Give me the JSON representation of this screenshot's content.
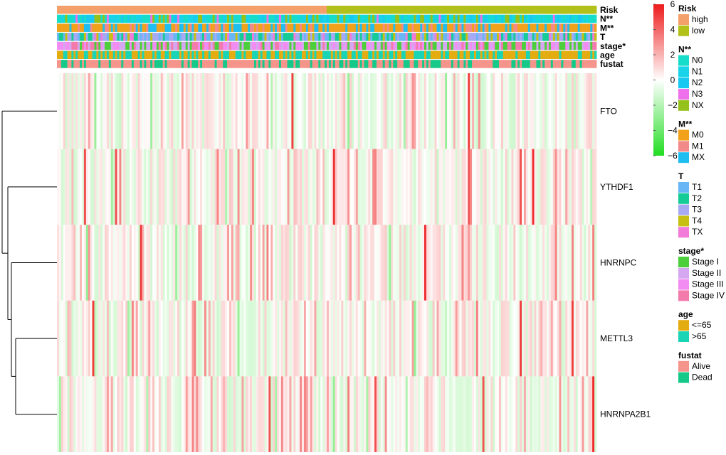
{
  "chart_data": {
    "type": "heatmap",
    "title": "",
    "color_scale": {
      "min": -6,
      "max": 6,
      "ticks": [
        6,
        4,
        2,
        0,
        -2,
        -4,
        -6
      ],
      "tick_labels": [
        "6",
        "4",
        "2",
        "0",
        "−2",
        "−4",
        "−6"
      ],
      "colors": {
        "high": "#ee1c1c",
        "mid": "#ffffff",
        "low": "#22dd22"
      }
    },
    "samples": {
      "count": 260,
      "risk_high_count": 130
    },
    "genes": [
      "FTO",
      "YTHDF1",
      "HNRNPC",
      "METTL3",
      "HNRNPA2B1"
    ],
    "dendrogram": "rows clustered: FTO joins last; YTHDF1 joins cluster (HNRNPC,(METTL3,HNRNPA2B1))",
    "annotation_tracks": [
      {
        "label": "Risk"
      },
      {
        "label": "N**"
      },
      {
        "label": "M**"
      },
      {
        "label": "T"
      },
      {
        "label": "stage*"
      },
      {
        "label": "age"
      },
      {
        "label": "fustat"
      }
    ]
  },
  "legend": {
    "groups": [
      {
        "title": "Risk",
        "items": [
          {
            "label": "high",
            "color": "#f4a06a"
          },
          {
            "label": "low",
            "color": "#b2c11a"
          }
        ]
      },
      {
        "title": "N**",
        "items": [
          {
            "label": "N0",
            "color": "#16ddc9"
          },
          {
            "label": "N1",
            "color": "#19d3e8"
          },
          {
            "label": "N2",
            "color": "#17c8f0"
          },
          {
            "label": "N3",
            "color": "#ee70ea"
          },
          {
            "label": "NX",
            "color": "#95c21a"
          }
        ]
      },
      {
        "title": "M**",
        "items": [
          {
            "label": "M0",
            "color": "#f1a21a"
          },
          {
            "label": "M1",
            "color": "#f38a8a"
          },
          {
            "label": "MX",
            "color": "#1fbef0"
          }
        ]
      },
      {
        "title": "T",
        "items": [
          {
            "label": "T1",
            "color": "#68b6f5"
          },
          {
            "label": "T2",
            "color": "#16cc96"
          },
          {
            "label": "T3",
            "color": "#a7a9f3"
          },
          {
            "label": "T4",
            "color": "#c7bf12"
          },
          {
            "label": "TX",
            "color": "#f27ad8"
          }
        ]
      },
      {
        "title": "stage*",
        "items": [
          {
            "label": "Stage I",
            "color": "#4ccf3a"
          },
          {
            "label": "Stage II",
            "color": "#d5a7f0"
          },
          {
            "label": "Stage III",
            "color": "#f28cf2"
          },
          {
            "label": "Stage IV",
            "color": "#f27bab"
          }
        ]
      },
      {
        "title": "age",
        "items": [
          {
            "label": "<=65",
            "color": "#e3ad12"
          },
          {
            "label": ">65",
            "color": "#1ad5b5"
          }
        ]
      },
      {
        "title": "fustat",
        "items": [
          {
            "label": "Alive",
            "color": "#f4948a"
          },
          {
            "label": "Dead",
            "color": "#15c989"
          }
        ]
      }
    ]
  }
}
